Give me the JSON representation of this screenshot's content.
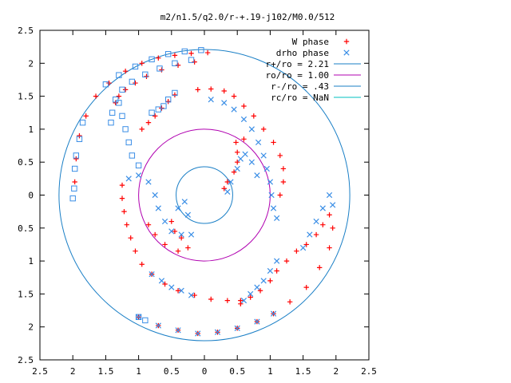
{
  "chart_data": {
    "type": "scatter",
    "title": "m2/n1.5/q2.0/r-+.19-j102/M0.0/512",
    "xlim": [
      -2.5,
      2.5
    ],
    "ylim": [
      -2.5,
      2.5
    ],
    "x_ticks": [
      -2.5,
      -2,
      -1.5,
      -1,
      -0.5,
      0,
      0.5,
      1,
      1.5,
      2,
      2.5
    ],
    "y_ticks": [
      -2.5,
      -2,
      -1.5,
      -1,
      -0.5,
      0,
      0.5,
      1,
      1.5,
      2,
      2.5
    ],
    "x_tick_labels": [
      "2.5",
      "2",
      "1.5",
      "1",
      "0.5",
      "0",
      "0.5",
      "1",
      "1.5",
      "2",
      "2.5"
    ],
    "y_tick_labels": [
      "2.5",
      "2",
      "1.5",
      "1",
      "0.5",
      "0",
      "0.5",
      "1",
      "1.5",
      "2",
      "2.5"
    ],
    "grid": false,
    "legend_position": "top-right",
    "series": [
      {
        "name": "W phase",
        "marker": "plus",
        "color": "#ff0000",
        "points": [
          [
            0.05,
            2.16
          ],
          [
            -0.2,
            2.15
          ],
          [
            -0.45,
            2.12
          ],
          [
            -0.7,
            2.08
          ],
          [
            -0.95,
            2.0
          ],
          [
            -1.2,
            1.88
          ],
          [
            -1.45,
            1.7
          ],
          [
            -1.65,
            1.5
          ],
          [
            -1.8,
            1.2
          ],
          [
            -1.9,
            0.9
          ],
          [
            -1.95,
            0.55
          ],
          [
            -1.97,
            0.2
          ],
          [
            -0.15,
            2.02
          ],
          [
            -0.4,
            1.97
          ],
          [
            -0.65,
            1.9
          ],
          [
            -0.88,
            1.8
          ],
          [
            -1.05,
            1.7
          ],
          [
            -1.2,
            1.6
          ],
          [
            -1.3,
            1.5
          ],
          [
            -1.35,
            1.4
          ],
          [
            -0.45,
            1.52
          ],
          [
            -0.55,
            1.42
          ],
          [
            -0.65,
            1.32
          ],
          [
            -0.75,
            1.2
          ],
          [
            -0.85,
            1.1
          ],
          [
            -0.95,
            1.0
          ],
          [
            -0.1,
            1.6
          ],
          [
            0.1,
            1.61
          ],
          [
            0.3,
            1.58
          ],
          [
            0.45,
            1.5
          ],
          [
            0.6,
            1.35
          ],
          [
            0.75,
            1.2
          ],
          [
            0.9,
            1.0
          ],
          [
            1.05,
            0.8
          ],
          [
            1.15,
            0.6
          ],
          [
            1.2,
            0.4
          ],
          [
            1.2,
            0.2
          ],
          [
            1.15,
            0.0
          ],
          [
            0.3,
            0.1
          ],
          [
            0.35,
            0.2
          ],
          [
            0.45,
            0.35
          ],
          [
            0.5,
            0.5
          ],
          [
            0.5,
            0.65
          ],
          [
            0.48,
            0.8
          ],
          [
            0.6,
            0.85
          ],
          [
            -1.25,
            0.15
          ],
          [
            -1.25,
            -0.05
          ],
          [
            -1.22,
            -0.25
          ],
          [
            -1.18,
            -0.45
          ],
          [
            -1.12,
            -0.65
          ],
          [
            -1.05,
            -0.85
          ],
          [
            -0.95,
            -1.05
          ],
          [
            -0.8,
            -1.2
          ],
          [
            -0.6,
            -1.35
          ],
          [
            -0.4,
            -1.45
          ],
          [
            -0.15,
            -1.52
          ],
          [
            0.1,
            -1.58
          ],
          [
            0.35,
            -1.6
          ],
          [
            0.55,
            -1.6
          ],
          [
            -0.5,
            -0.4
          ],
          [
            -0.45,
            -0.55
          ],
          [
            -0.35,
            -0.65
          ],
          [
            -0.25,
            -0.8
          ],
          [
            -0.4,
            -0.85
          ],
          [
            -0.6,
            -0.75
          ],
          [
            -0.75,
            -0.6
          ],
          [
            -0.85,
            -0.45
          ],
          [
            0.55,
            -1.65
          ],
          [
            0.7,
            -1.55
          ],
          [
            0.85,
            -1.45
          ],
          [
            1.0,
            -1.3
          ],
          [
            1.1,
            -1.15
          ],
          [
            1.25,
            -1.0
          ],
          [
            1.4,
            -0.85
          ],
          [
            1.55,
            -0.75
          ],
          [
            1.7,
            -0.6
          ],
          [
            1.8,
            -0.45
          ],
          [
            1.9,
            -0.3
          ],
          [
            -1.0,
            -1.85
          ],
          [
            -0.7,
            -1.98
          ],
          [
            -0.4,
            -2.05
          ],
          [
            -0.1,
            -2.1
          ],
          [
            0.2,
            -2.08
          ],
          [
            0.5,
            -2.02
          ],
          [
            0.8,
            -1.92
          ],
          [
            1.05,
            -1.8
          ],
          [
            1.3,
            -1.62
          ],
          [
            1.55,
            -1.4
          ],
          [
            1.75,
            -1.1
          ],
          [
            1.9,
            -0.8
          ],
          [
            1.95,
            -0.5
          ]
        ]
      },
      {
        "name": "drho phase",
        "marker": "cross",
        "color": "#3a8ee6",
        "points": [
          [
            0.1,
            1.45
          ],
          [
            0.3,
            1.4
          ],
          [
            0.45,
            1.3
          ],
          [
            0.6,
            1.15
          ],
          [
            0.72,
            1.0
          ],
          [
            0.82,
            0.8
          ],
          [
            0.9,
            0.6
          ],
          [
            0.95,
            0.4
          ],
          [
            1.0,
            0.2
          ],
          [
            1.02,
            0.0
          ],
          [
            1.05,
            -0.2
          ],
          [
            1.1,
            -0.35
          ],
          [
            0.35,
            0.05
          ],
          [
            0.4,
            0.2
          ],
          [
            0.5,
            0.4
          ],
          [
            0.55,
            0.55
          ],
          [
            0.62,
            0.62
          ],
          [
            0.72,
            0.5
          ],
          [
            0.8,
            0.3
          ],
          [
            1.5,
            -0.8
          ],
          [
            1.6,
            -0.6
          ],
          [
            1.7,
            -0.4
          ],
          [
            1.8,
            -0.2
          ],
          [
            1.9,
            0.0
          ],
          [
            1.95,
            -0.15
          ],
          [
            0.6,
            -1.6
          ],
          [
            0.7,
            -1.5
          ],
          [
            0.8,
            -1.4
          ],
          [
            0.9,
            -1.3
          ],
          [
            1.0,
            -1.15
          ],
          [
            1.1,
            -1.0
          ],
          [
            -1.15,
            0.25
          ],
          [
            -1.0,
            0.3
          ],
          [
            -0.85,
            0.2
          ],
          [
            -0.75,
            0.0
          ],
          [
            -0.7,
            -0.2
          ],
          [
            -0.6,
            -0.4
          ],
          [
            -0.5,
            -0.55
          ],
          [
            -0.35,
            -0.6
          ],
          [
            -0.2,
            -0.6
          ],
          [
            -0.3,
            -0.1
          ],
          [
            -0.25,
            -0.3
          ],
          [
            -0.4,
            -0.2
          ],
          [
            -0.8,
            -1.2
          ],
          [
            -0.65,
            -1.3
          ],
          [
            -0.5,
            -1.4
          ],
          [
            -0.35,
            -1.45
          ],
          [
            -0.2,
            -1.52
          ],
          [
            -1.0,
            -1.85
          ],
          [
            -0.7,
            -1.98
          ],
          [
            -0.4,
            -2.05
          ],
          [
            -0.1,
            -2.1
          ],
          [
            0.2,
            -2.08
          ],
          [
            0.5,
            -2.02
          ],
          [
            0.8,
            -1.92
          ],
          [
            1.05,
            -1.8
          ]
        ]
      },
      {
        "name": "drho phase",
        "marker": "square",
        "color": "#3a8ee6",
        "points": [
          [
            -0.05,
            2.2
          ],
          [
            -0.3,
            2.18
          ],
          [
            -0.55,
            2.14
          ],
          [
            -0.8,
            2.06
          ],
          [
            -1.05,
            1.95
          ],
          [
            -1.3,
            1.82
          ],
          [
            -1.5,
            1.68
          ],
          [
            -0.2,
            2.05
          ],
          [
            -0.45,
            2.0
          ],
          [
            -0.68,
            1.92
          ],
          [
            -0.9,
            1.83
          ],
          [
            -1.1,
            1.72
          ],
          [
            -1.25,
            1.6
          ],
          [
            -1.35,
            1.45
          ],
          [
            -1.4,
            1.25
          ],
          [
            -1.42,
            1.1
          ],
          [
            -0.45,
            1.55
          ],
          [
            -0.55,
            1.45
          ],
          [
            -0.62,
            1.35
          ],
          [
            -0.7,
            1.3
          ],
          [
            -0.8,
            1.25
          ],
          [
            -1.85,
            1.1
          ],
          [
            -1.9,
            0.85
          ],
          [
            -1.95,
            0.6
          ],
          [
            -1.97,
            0.4
          ],
          [
            -1.98,
            0.1
          ],
          [
            -2.0,
            -0.05
          ],
          [
            -1.3,
            1.4
          ],
          [
            -1.25,
            1.2
          ],
          [
            -1.2,
            1.0
          ],
          [
            -1.15,
            0.8
          ],
          [
            -1.1,
            0.6
          ],
          [
            -1.0,
            0.45
          ],
          [
            -1.0,
            -1.85
          ],
          [
            -0.9,
            -1.9
          ]
        ]
      }
    ],
    "circles": [
      {
        "name": "r+/ro = 2.21",
        "radius": 2.21,
        "color": "#1a7fc6"
      },
      {
        "name": "ro/ro = 1.00",
        "radius": 1.0,
        "color": "#b000b0"
      },
      {
        "name": "r-/ro = .43",
        "radius": 0.43,
        "color": "#1a7fc6"
      },
      {
        "name": "rc/ro = NaN",
        "radius": null,
        "color": "#00c0c0"
      }
    ]
  }
}
